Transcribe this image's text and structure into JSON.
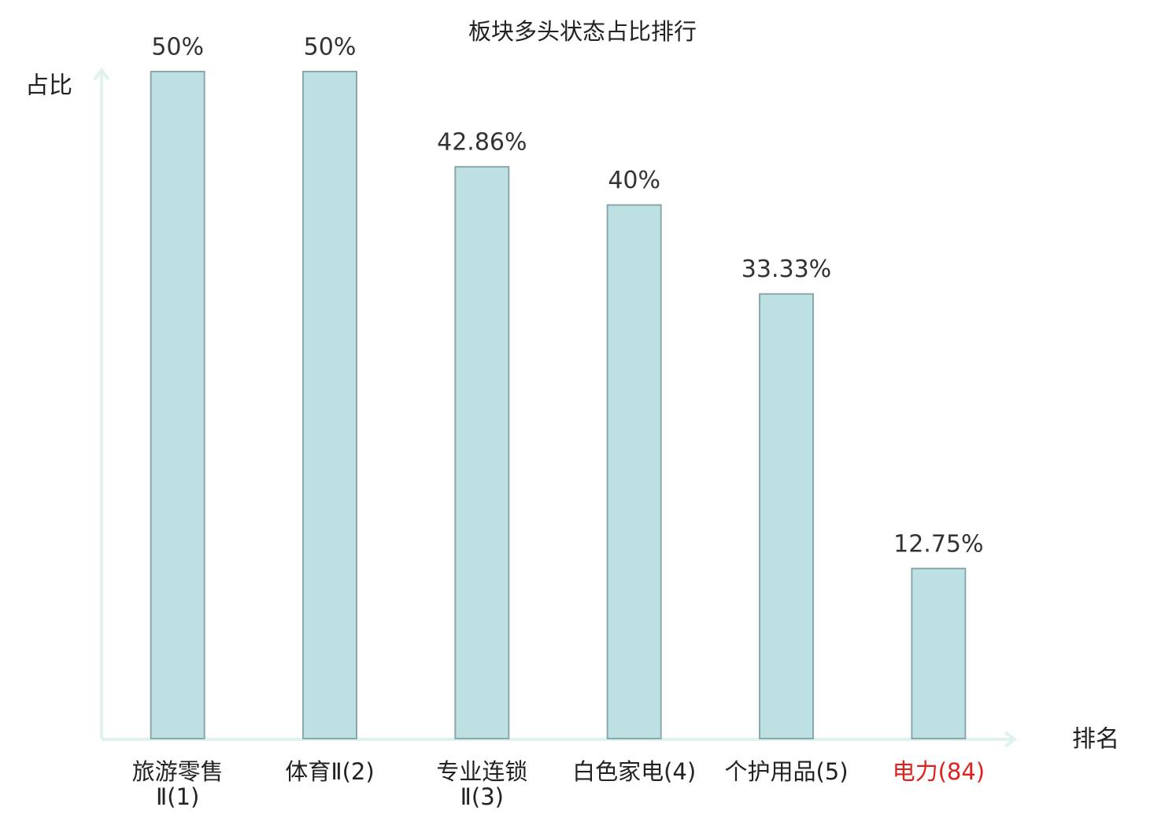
{
  "chart_data": {
    "type": "bar",
    "title": "板块多头状态占比排行",
    "y_label": "占比",
    "x_label": "排名",
    "categories": [
      [
        "旅游零售",
        "Ⅱ(1)"
      ],
      [
        "体育Ⅱ(2)"
      ],
      [
        "专业连锁",
        "Ⅱ(3)"
      ],
      [
        "白色家电(4)"
      ],
      [
        "个护用品(5)"
      ],
      [
        "电力(84)"
      ]
    ],
    "category_colors": [
      "#222222",
      "#222222",
      "#222222",
      "#222222",
      "#222222",
      "#e0201c"
    ],
    "values": [
      50,
      50,
      42.86,
      40,
      33.33,
      12.75
    ],
    "value_labels": [
      "50%",
      "50%",
      "42.86%",
      "40%",
      "33.33%",
      "12.75%"
    ],
    "color": "#bde0e3",
    "edge_color": "#8aa8ab",
    "axis_color": "#dff2ef",
    "ylim": [
      0,
      50
    ]
  }
}
